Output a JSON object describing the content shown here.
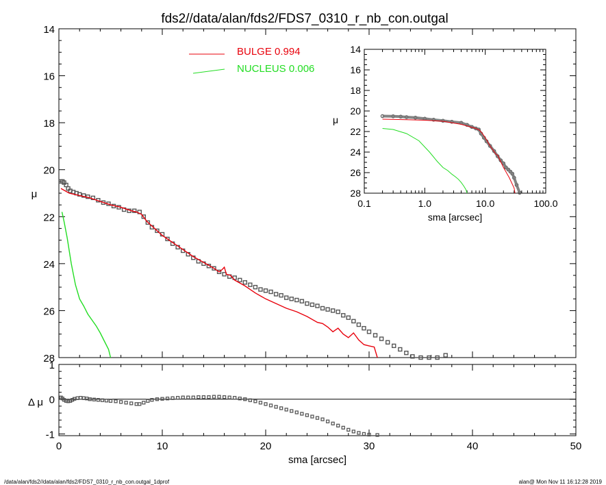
{
  "title": "fds2//data/alan/fds2/FDS7_0310_r_nb_con.outgal",
  "footer": {
    "left": "/data/alan/fds2//data/alan/fds2/FDS7_0310_r_nb_con.outgal_1dprof",
    "right": "alan@  Mon Nov 11 16:12:28 2019"
  },
  "colors": {
    "axes": "#000000",
    "data": "#555555",
    "bulge": "#e8000b",
    "nucleus": "#22dd22"
  },
  "legend": [
    {
      "label": "BULGE  0.994",
      "color": "#e8000b"
    },
    {
      "label": "NUCLEUS  0.006",
      "color": "#22dd22"
    }
  ],
  "chart_data": [
    {
      "name": "main",
      "type": "line",
      "xlabel": "",
      "ylabel": "μ",
      "xlim": [
        0,
        50
      ],
      "ylim": [
        28,
        14
      ],
      "yticks": [
        "14",
        "16",
        "18",
        "20",
        "22",
        "24",
        "26",
        "28"
      ],
      "data_points": {
        "sma": [
          0.2,
          0.35,
          0.5,
          0.7,
          0.9,
          1.1,
          1.4,
          1.7,
          2.0,
          2.4,
          2.8,
          3.3,
          3.8,
          4.3,
          4.8,
          5.3,
          5.8,
          6.3,
          6.8,
          7.3,
          7.8,
          8.2,
          8.6,
          9.0,
          9.5,
          10.0,
          10.5,
          11.0,
          11.5,
          12.0,
          12.5,
          13.0,
          13.5,
          14.0,
          14.5,
          15.0,
          15.5,
          16.0,
          16.5,
          17.0,
          17.5,
          18.0,
          18.5,
          19.0,
          19.5,
          20.0,
          20.5,
          21.0,
          21.5,
          22.0,
          22.5,
          23.0,
          23.5,
          24.0,
          24.5,
          25.0,
          25.5,
          26.0,
          26.5,
          27.0,
          27.5,
          28.0,
          28.5,
          29.0,
          29.5,
          30.0,
          30.6,
          31.2,
          31.8,
          32.4,
          33.0,
          33.6,
          34.2,
          35.0,
          35.8,
          36.6,
          37.4
        ],
        "mu": [
          20.5,
          20.5,
          20.55,
          20.65,
          20.8,
          20.9,
          20.95,
          21.0,
          21.05,
          21.1,
          21.15,
          21.2,
          21.3,
          21.4,
          21.45,
          21.55,
          21.6,
          21.7,
          21.75,
          21.75,
          21.8,
          22.0,
          22.25,
          22.45,
          22.6,
          22.75,
          22.95,
          23.15,
          23.3,
          23.45,
          23.6,
          23.75,
          23.9,
          24.0,
          24.1,
          24.2,
          24.35,
          24.45,
          24.55,
          24.6,
          24.7,
          24.8,
          24.9,
          25.0,
          25.1,
          25.15,
          25.2,
          25.3,
          25.35,
          25.45,
          25.5,
          25.55,
          25.6,
          25.7,
          25.75,
          25.8,
          25.9,
          25.95,
          26.0,
          26.05,
          26.2,
          26.3,
          26.45,
          26.6,
          26.75,
          26.9,
          27.05,
          27.2,
          27.35,
          27.5,
          27.65,
          27.8,
          27.95,
          28.0,
          28.0,
          28.0,
          27.9
        ]
      },
      "bulge": {
        "sma": [
          0.2,
          1,
          2,
          3,
          4,
          5,
          6,
          7,
          7.5,
          8,
          8.5,
          9,
          10,
          11,
          12,
          13,
          14,
          15,
          15.5,
          15.8,
          16.0,
          16.2,
          16.6,
          17,
          18,
          19,
          20,
          21,
          22,
          23,
          24,
          25,
          25.5,
          26,
          26.5,
          27,
          27.5,
          28,
          28.5,
          29,
          29.5,
          30,
          30.5,
          30.8
        ],
        "mu": [
          20.8,
          21.0,
          21.1,
          21.2,
          21.35,
          21.5,
          21.6,
          21.75,
          21.8,
          21.9,
          22.2,
          22.4,
          22.8,
          23.1,
          23.4,
          23.7,
          23.95,
          24.2,
          24.35,
          24.25,
          24.15,
          24.45,
          24.5,
          24.7,
          24.95,
          25.25,
          25.5,
          25.7,
          25.9,
          26.05,
          26.25,
          26.5,
          26.55,
          26.7,
          26.9,
          26.75,
          27.0,
          27.15,
          26.95,
          27.25,
          27.45,
          27.5,
          27.55,
          28.0
        ]
      },
      "nucleus": {
        "sma": [
          0.3,
          0.5,
          0.8,
          1.2,
          1.6,
          2.0,
          2.4,
          2.8,
          3.2,
          3.6,
          4.0,
          4.4,
          4.8,
          5.0
        ],
        "mu": [
          21.8,
          22.2,
          22.9,
          24.0,
          24.9,
          25.5,
          25.8,
          26.15,
          26.4,
          26.65,
          26.95,
          27.3,
          27.65,
          28.0
        ]
      }
    },
    {
      "name": "inset",
      "type": "line",
      "xscale": "log",
      "xlabel": "sma [arcsec]",
      "ylabel": "μ",
      "xlim": [
        0.1,
        100
      ],
      "ylim": [
        28,
        14
      ],
      "xticks": [
        "0.1",
        "1.0",
        "10.0",
        "100.0"
      ],
      "yticks": [
        "14",
        "16",
        "18",
        "20",
        "22",
        "24",
        "26",
        "28"
      ],
      "data_points": {
        "sma": [
          0.2,
          0.3,
          0.4,
          0.5,
          0.7,
          1.0,
          1.4,
          2.0,
          2.8,
          4.0,
          5.0,
          6.0,
          7.0,
          7.8,
          8.5,
          9.5,
          10.5,
          12,
          14,
          16,
          18,
          20,
          22,
          24,
          26,
          28,
          30,
          33,
          37
        ],
        "mu": [
          20.5,
          20.52,
          20.55,
          20.6,
          20.65,
          20.75,
          20.85,
          20.95,
          21.05,
          21.15,
          21.35,
          21.55,
          21.7,
          21.8,
          22.2,
          22.6,
          22.95,
          23.4,
          23.9,
          24.4,
          24.8,
          25.1,
          25.5,
          25.7,
          25.9,
          26.1,
          26.5,
          27.2,
          27.95
        ]
      },
      "bulge": {
        "sma": [
          0.2,
          0.5,
          1,
          2,
          4,
          7,
          8,
          9,
          10,
          12,
          15,
          16,
          20,
          25,
          30,
          31
        ],
        "mu": [
          20.8,
          20.85,
          20.9,
          21.0,
          21.3,
          21.7,
          21.85,
          22.2,
          22.6,
          23.4,
          24.2,
          24.3,
          25.5,
          26.5,
          27.5,
          28.0
        ]
      },
      "nucleus": {
        "sma": [
          0.2,
          0.3,
          0.5,
          0.8,
          1.2,
          1.6,
          2.0,
          2.4,
          2.8,
          3.2,
          3.6,
          4.0,
          4.4,
          4.8,
          5.0
        ],
        "mu": [
          21.7,
          21.8,
          22.2,
          22.9,
          24.0,
          24.9,
          25.5,
          25.8,
          26.15,
          26.4,
          26.65,
          26.95,
          27.3,
          27.65,
          28.0
        ]
      }
    },
    {
      "name": "residual",
      "type": "scatter",
      "xlabel": "sma [arcsec]",
      "ylabel": "Δ μ",
      "xlim": [
        0,
        50
      ],
      "ylim": [
        -1.05,
        1.0
      ],
      "xticks": [
        "0",
        "10",
        "20",
        "30",
        "40",
        "50"
      ],
      "yticks": [
        "1",
        "0",
        "-1"
      ],
      "zero_line": true,
      "points": {
        "sma": [
          0.2,
          0.35,
          0.5,
          0.7,
          0.9,
          1.1,
          1.3,
          1.5,
          1.8,
          2.1,
          2.4,
          2.7,
          3.0,
          3.4,
          3.8,
          4.2,
          4.6,
          5.0,
          5.5,
          6.0,
          6.5,
          7.0,
          7.5,
          7.8,
          8.2,
          8.6,
          9.0,
          9.5,
          10.0,
          10.5,
          11.0,
          11.5,
          12.0,
          12.5,
          13.0,
          13.5,
          14.0,
          14.5,
          15.0,
          15.5,
          16.0,
          16.5,
          17.0,
          17.5,
          18.0,
          18.5,
          19.0,
          19.5,
          20.0,
          20.5,
          21.0,
          21.5,
          22.0,
          22.5,
          23.0,
          23.5,
          24.0,
          24.5,
          25.0,
          25.5,
          26.0,
          26.5,
          27.0,
          27.5,
          28.0,
          28.5,
          29.0,
          29.5,
          30.0,
          30.8
        ],
        "dmu": [
          0.05,
          0.02,
          -0.02,
          -0.05,
          -0.06,
          -0.05,
          -0.02,
          0.01,
          0.03,
          0.04,
          0.03,
          0.02,
          0.0,
          -0.01,
          -0.02,
          -0.03,
          -0.04,
          -0.05,
          -0.06,
          -0.08,
          -0.1,
          -0.12,
          -0.14,
          -0.14,
          -0.1,
          -0.05,
          -0.02,
          0.0,
          0.01,
          0.02,
          0.03,
          0.04,
          0.05,
          0.05,
          0.05,
          0.06,
          0.06,
          0.06,
          0.07,
          0.07,
          0.06,
          0.05,
          0.04,
          0.02,
          0.0,
          -0.03,
          -0.06,
          -0.1,
          -0.14,
          -0.18,
          -0.22,
          -0.26,
          -0.3,
          -0.34,
          -0.38,
          -0.42,
          -0.46,
          -0.5,
          -0.54,
          -0.58,
          -0.64,
          -0.7,
          -0.76,
          -0.82,
          -0.88,
          -0.93,
          -0.97,
          -1.0,
          -1.02,
          -1.03
        ]
      }
    }
  ]
}
